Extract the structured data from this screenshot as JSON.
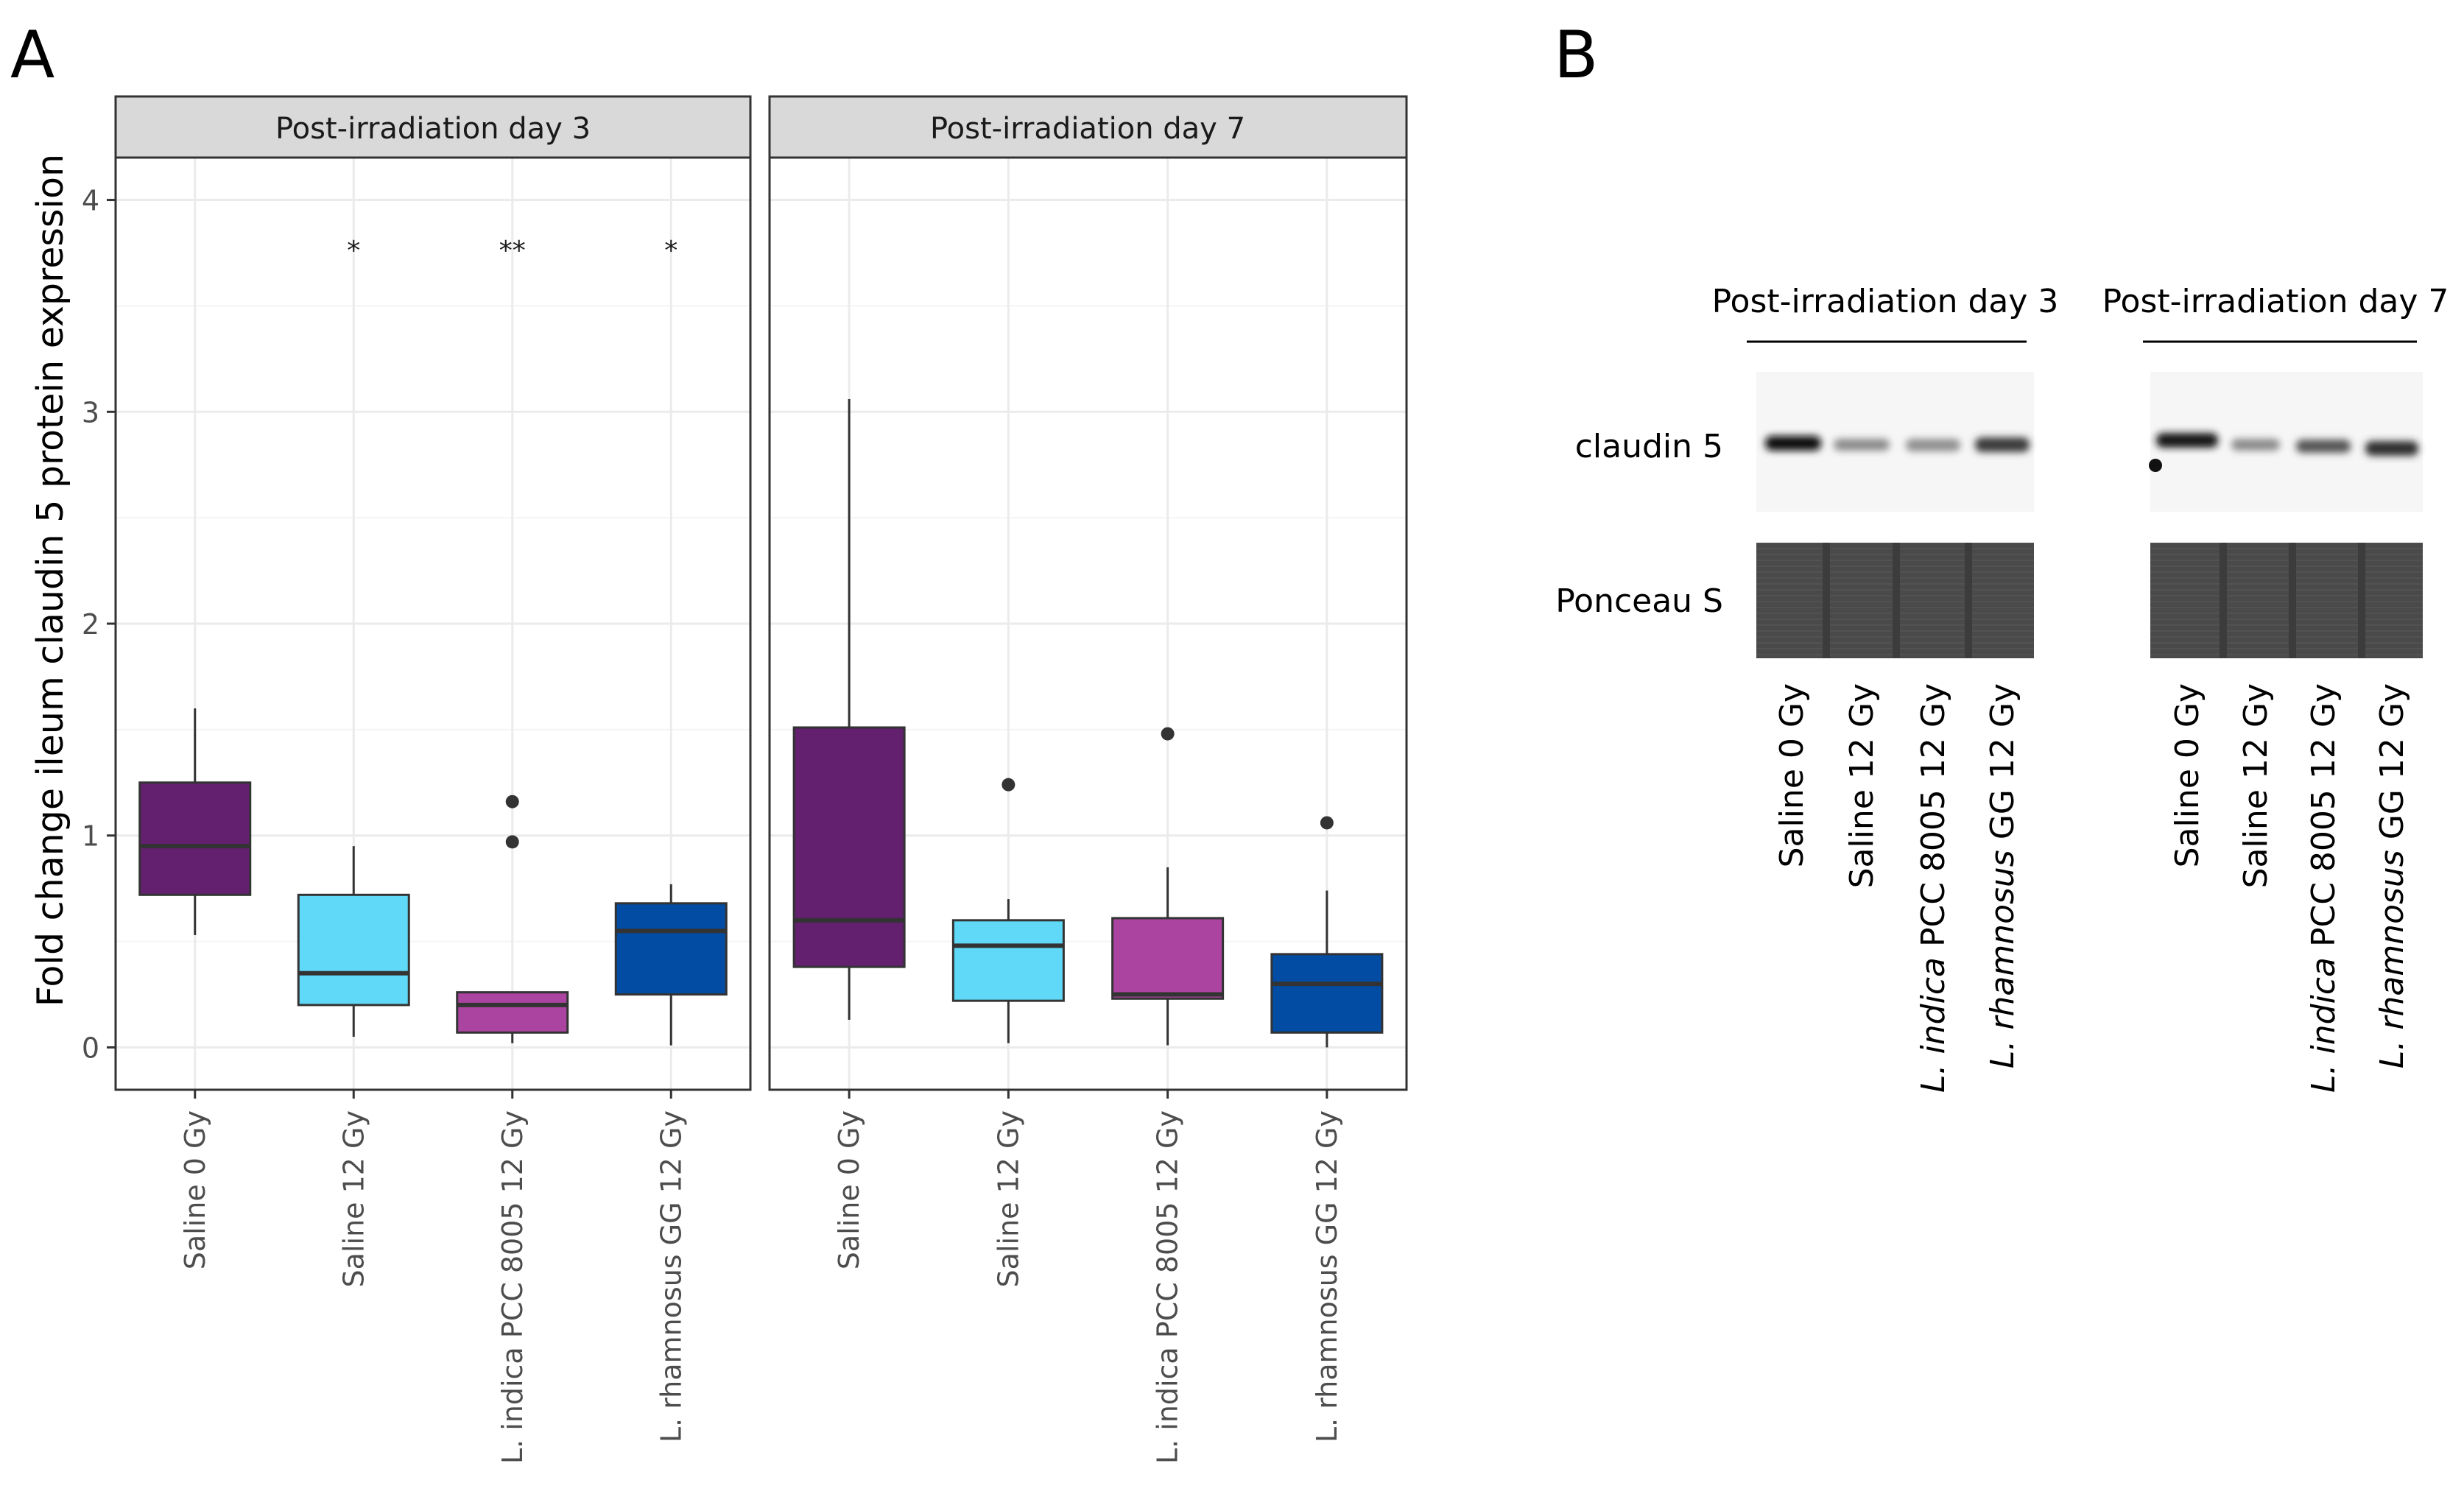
{
  "panel_a": {
    "label": "A",
    "ylabel": "Fold change ileum claudin 5 protein expression",
    "chart_data": {
      "type": "boxplot",
      "ylim": [
        -0.2,
        4.2
      ],
      "yticks": [
        "0",
        "1",
        "2",
        "3",
        "4"
      ],
      "ytick_values": [
        0,
        1,
        2,
        3,
        4
      ],
      "categories": [
        "Saline 0 Gy",
        "Saline 12 Gy",
        "L. indica PCC 8005 12 Gy",
        "L. rhamnosus GG 12 Gy"
      ],
      "facets": [
        {
          "title": "Post-irradiation day 3",
          "boxes": [
            {
              "lower_whisker": 0.53,
              "q1": 0.72,
              "median": 0.95,
              "q3": 1.25,
              "upper_whisker": 1.6,
              "outliers": [],
              "color": "#62206F",
              "annotation": ""
            },
            {
              "lower_whisker": 0.05,
              "q1": 0.2,
              "median": 0.35,
              "q3": 0.72,
              "upper_whisker": 0.95,
              "outliers": [],
              "color": "#5FD9F7",
              "annotation": "*"
            },
            {
              "lower_whisker": 0.02,
              "q1": 0.07,
              "median": 0.2,
              "q3": 0.26,
              "upper_whisker": 0.26,
              "outliers": [
                1.16,
                0.97
              ],
              "color": "#AB44A0",
              "annotation": "**"
            },
            {
              "lower_whisker": 0.01,
              "q1": 0.25,
              "median": 0.55,
              "q3": 0.68,
              "upper_whisker": 0.77,
              "outliers": [],
              "color": "#034CA3",
              "annotation": "*"
            }
          ]
        },
        {
          "title": "Post-irradiation day 7",
          "boxes": [
            {
              "lower_whisker": 0.13,
              "q1": 0.38,
              "median": 0.6,
              "q3": 1.51,
              "upper_whisker": 3.06,
              "outliers": [],
              "color": "#62206F",
              "annotation": ""
            },
            {
              "lower_whisker": 0.02,
              "q1": 0.22,
              "median": 0.48,
              "q3": 0.6,
              "upper_whisker": 0.7,
              "outliers": [
                1.24
              ],
              "color": "#5FD9F7",
              "annotation": ""
            },
            {
              "lower_whisker": 0.01,
              "q1": 0.23,
              "median": 0.25,
              "q3": 0.61,
              "upper_whisker": 0.85,
              "outliers": [
                1.48
              ],
              "color": "#AB44A0",
              "annotation": ""
            },
            {
              "lower_whisker": 0.0,
              "q1": 0.07,
              "median": 0.3,
              "q3": 0.44,
              "upper_whisker": 0.74,
              "outliers": [
                1.06
              ],
              "color": "#034CA3",
              "annotation": ""
            }
          ]
        }
      ]
    }
  },
  "panel_b": {
    "label": "B",
    "groups": [
      {
        "title": "Post-irradiation day 3"
      },
      {
        "title": "Post-irradiation day 7"
      }
    ],
    "rows": [
      "claudin 5",
      "Ponceau S"
    ],
    "lanes": [
      {
        "italic": "",
        "rest": "Saline 0 Gy"
      },
      {
        "italic": "",
        "rest": "Saline 12 Gy"
      },
      {
        "italic": "L. indica",
        "rest": " PCC 8005 12 Gy"
      },
      {
        "italic": "L. rhamnosus",
        "rest": " GG 12 Gy"
      }
    ]
  }
}
